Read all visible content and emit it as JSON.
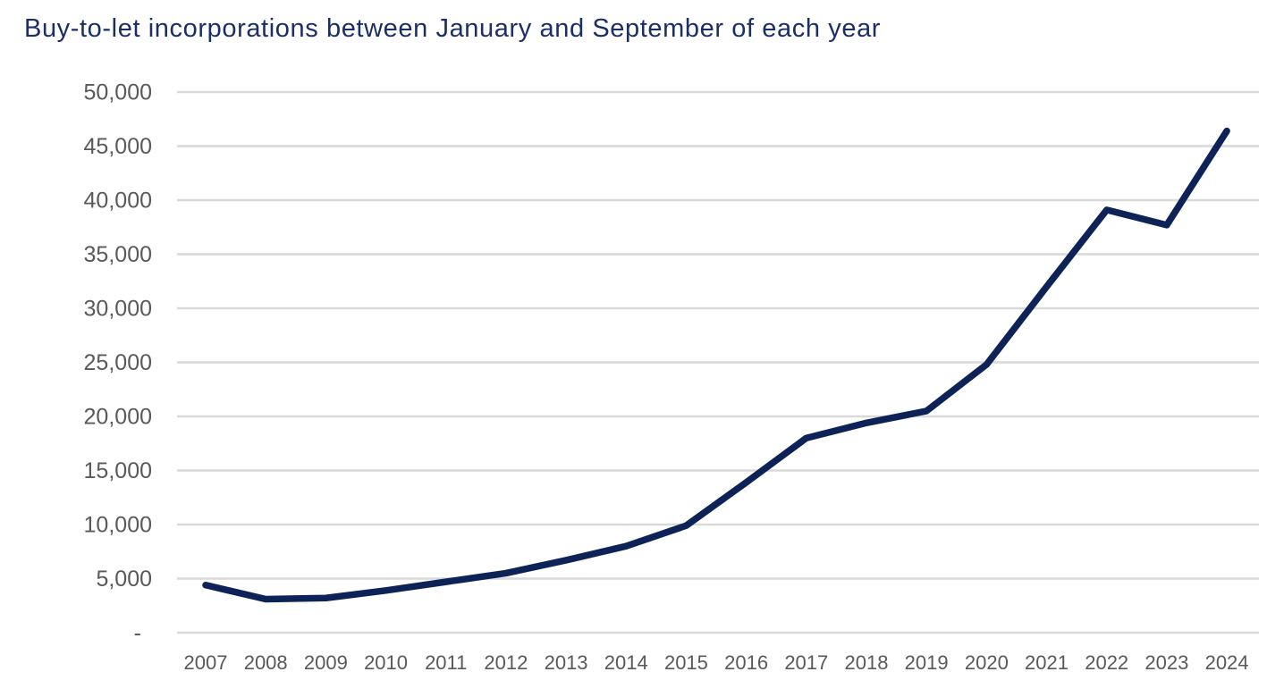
{
  "chart_data": {
    "type": "line",
    "title": "Buy-to-let incorporations between January and September of each year",
    "categories": [
      "2007",
      "2008",
      "2009",
      "2010",
      "2011",
      "2012",
      "2013",
      "2014",
      "2015",
      "2016",
      "2017",
      "2018",
      "2019",
      "2020",
      "2021",
      "2022",
      "2023",
      "2024"
    ],
    "values": [
      4400,
      3100,
      3200,
      3900,
      4700,
      5500,
      6700,
      8000,
      9900,
      13900,
      18000,
      19400,
      20500,
      24800,
      32000,
      39100,
      37700,
      46400
    ],
    "xlabel": "",
    "ylabel": "",
    "ylim": [
      0,
      50000
    ],
    "ytick_step": 5000,
    "y_tick_labels": [
      "-",
      "5,000",
      "10,000",
      "15,000",
      "20,000",
      "25,000",
      "30,000",
      "35,000",
      "40,000",
      "45,000",
      "50,000"
    ],
    "grid": "horizontal-only",
    "legend": "none",
    "colors": {
      "line": "#0d2257",
      "grid": "#d9d9d9",
      "axis_labels": "#595959",
      "title": "#1b2e66",
      "background": "#ffffff"
    }
  }
}
